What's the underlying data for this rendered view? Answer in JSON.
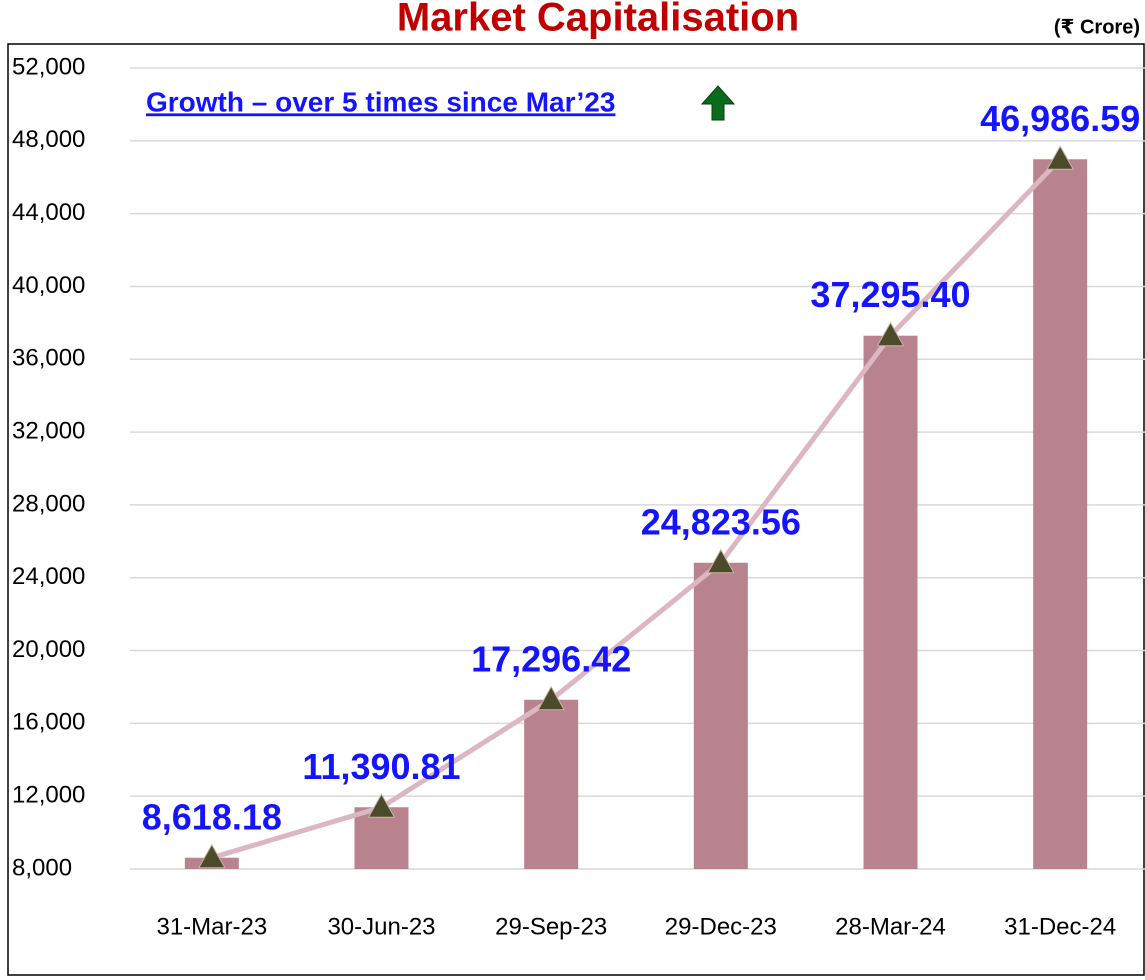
{
  "chart_data": {
    "type": "bar",
    "title": "Market Capitalisation",
    "unit": "(₹ Crore)",
    "annotation": "Growth – over 5 times since Mar’23",
    "categories": [
      "31-Mar-23",
      "30-Jun-23",
      "29-Sep-23",
      "29-Dec-23",
      "28-Mar-24",
      "31-Dec-24"
    ],
    "values": [
      8618.18,
      11390.81,
      17296.42,
      24823.56,
      37295.4,
      46986.59
    ],
    "value_labels": [
      "8,618.18",
      "11,390.81",
      "17,296.42",
      "24,823.56",
      "37,295.40",
      "46,986.59"
    ],
    "color": "#b8838f",
    "line_color": "#dcb6c2",
    "marker_color": "#4b4b2b",
    "ylim": [
      8000,
      52000
    ],
    "yticks": [
      {
        "value": 8000,
        "label": "8,000"
      },
      {
        "value": 12000,
        "label": "12,000"
      },
      {
        "value": 16000,
        "label": "16,000"
      },
      {
        "value": 20000,
        "label": "20,000"
      },
      {
        "value": 24000,
        "label": "24,000"
      },
      {
        "value": 28000,
        "label": "28,000"
      },
      {
        "value": 32000,
        "label": "32,000"
      },
      {
        "value": 36000,
        "label": "36,000"
      },
      {
        "value": 40000,
        "label": "40,000"
      },
      {
        "value": 44000,
        "label": "44,000"
      },
      {
        "value": 48000,
        "label": "48,000"
      },
      {
        "value": 52000,
        "label": "52,000"
      }
    ],
    "grid": true
  }
}
